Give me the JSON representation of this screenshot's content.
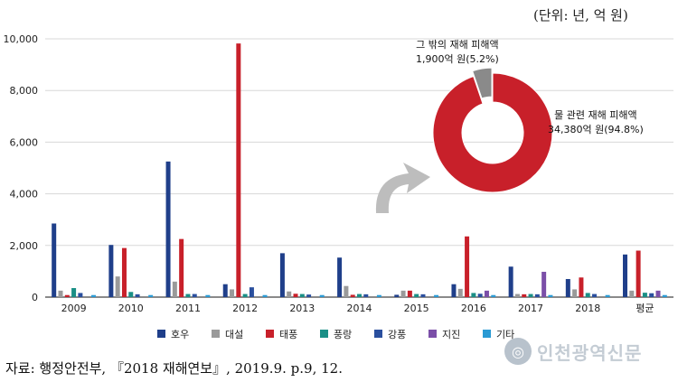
{
  "unit_note": "(단위: 년, 억 원)",
  "source_note": "자료: 행정안전부, 『2018 재해연보』, 2019.9. p.9, 12.",
  "watermark_text": "인천광역신문",
  "chart_data": [
    {
      "type": "bar",
      "categories": [
        "2009",
        "2010",
        "2011",
        "2012",
        "2013",
        "2014",
        "2015",
        "2016",
        "2017",
        "2018",
        "평균"
      ],
      "ylim": [
        0,
        10000
      ],
      "yticks": [
        "0",
        "2,000",
        "4,000",
        "6,000",
        "8,000",
        "10,000"
      ],
      "grid": true,
      "legend_position": "bottom",
      "series": [
        {
          "name": "호우",
          "color": "#1f3f8a",
          "values": [
            2850,
            2020,
            5250,
            500,
            1700,
            1530,
            90,
            500,
            1180,
            700,
            1650
          ]
        },
        {
          "name": "대설",
          "color": "#9a9a9a",
          "values": [
            250,
            800,
            600,
            300,
            220,
            430,
            250,
            320,
            120,
            300,
            250
          ]
        },
        {
          "name": "태풍",
          "color": "#c8202a",
          "values": [
            80,
            1900,
            2250,
            9820,
            130,
            90,
            250,
            2350,
            110,
            760,
            1800
          ]
        },
        {
          "name": "풍랑",
          "color": "#1a8f86",
          "values": [
            350,
            200,
            120,
            120,
            120,
            120,
            120,
            160,
            120,
            160,
            170
          ]
        },
        {
          "name": "강풍",
          "color": "#2a4f9e",
          "values": [
            160,
            110,
            120,
            380,
            100,
            110,
            110,
            130,
            110,
            120,
            150
          ]
        },
        {
          "name": "지진",
          "color": "#7b4fa8",
          "values": [
            0,
            0,
            0,
            0,
            0,
            0,
            0,
            250,
            980,
            0,
            250
          ]
        },
        {
          "name": "기타",
          "color": "#2a9ad4",
          "values": [
            80,
            80,
            80,
            80,
            80,
            80,
            80,
            80,
            80,
            80,
            80
          ]
        }
      ]
    },
    {
      "type": "pie",
      "variant": "donut",
      "slices": [
        {
          "label": "물 관련 재해 피해액",
          "value_text": "34,380억 원(94.8%)",
          "value": 34380,
          "percent": 94.8,
          "color": "#c8202a"
        },
        {
          "label": "그 밖의 재해 피해액",
          "value_text": "1,900억 원(5.2%)",
          "value": 1900,
          "percent": 5.2,
          "color": "#8a8a8a"
        }
      ]
    }
  ]
}
